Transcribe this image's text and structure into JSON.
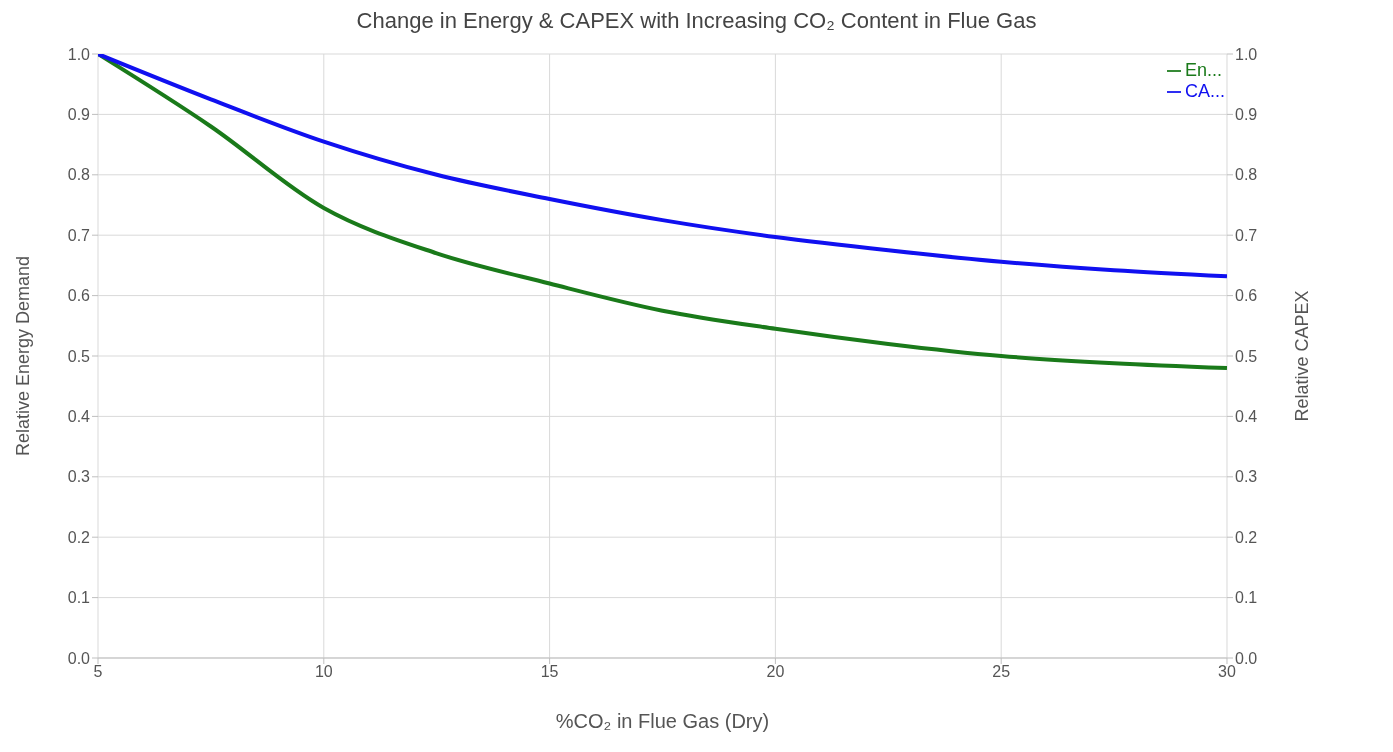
{
  "chart_data": {
    "type": "line",
    "title": "Change in Energy & CAPEX with Increasing CO₂ Content in Flue Gas",
    "xlabel": "%CO₂ in Flue Gas (Dry)",
    "ylabel": "Relative Energy Demand",
    "y2label": "Relative CAPEX",
    "x": [
      5,
      7.5,
      10,
      12.5,
      15,
      17.5,
      20,
      22.5,
      25,
      27.5,
      30
    ],
    "series": [
      {
        "name": "En...",
        "color": "#1a7a1a",
        "values": [
          1.0,
          0.88,
          0.745,
          0.67,
          0.62,
          0.575,
          0.545,
          0.52,
          0.5,
          0.488,
          0.48
        ]
      },
      {
        "name": "CA...",
        "color": "#1010f0",
        "axis": "y2",
        "values": [
          1.0,
          0.925,
          0.855,
          0.8,
          0.76,
          0.725,
          0.697,
          0.675,
          0.656,
          0.642,
          0.632
        ]
      }
    ],
    "xlim": [
      5,
      30
    ],
    "xticks": [
      5,
      10,
      15,
      20,
      25,
      30
    ],
    "ylim": [
      0,
      1
    ],
    "yticks": [
      {
        "value": 0,
        "label": "0.0"
      },
      0.1,
      0.2,
      0.3,
      0.4,
      0.5,
      0.6,
      0.7,
      0.8,
      0.9,
      {
        "value": 1,
        "label": "1.0"
      }
    ],
    "y2lim": [
      0,
      1
    ],
    "y2ticks": [
      {
        "value": 0,
        "label": "0.0"
      },
      0.1,
      0.2,
      0.3,
      0.4,
      0.5,
      0.6,
      0.7,
      0.8,
      0.9,
      {
        "value": 1,
        "label": "1.0"
      }
    ],
    "grid": true,
    "legend": "top right",
    "marker": "none",
    "line_style": "solid"
  }
}
